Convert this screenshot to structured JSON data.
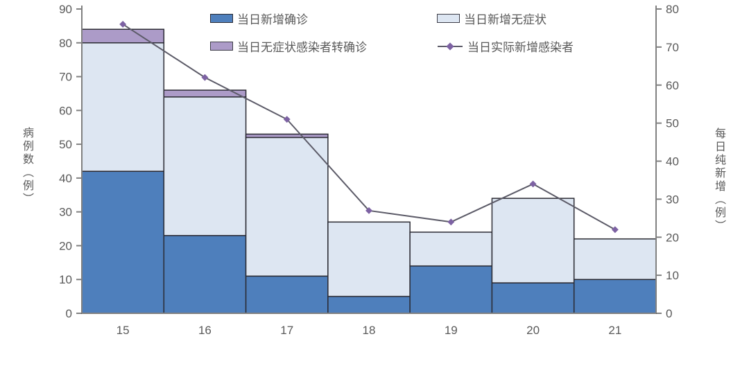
{
  "chart_data": {
    "type": "bar",
    "subtype": "stacked-bar-with-line",
    "categories": [
      "15",
      "16",
      "17",
      "18",
      "19",
      "20",
      "21"
    ],
    "series": [
      {
        "name": "当日新增确诊",
        "type": "bar",
        "axis": "left",
        "color": "#4e7fbc",
        "values": [
          42,
          23,
          11,
          5,
          14,
          9,
          10
        ]
      },
      {
        "name": "当日新增无症状",
        "type": "bar",
        "axis": "left",
        "color": "#dde6f2",
        "values": [
          38,
          41,
          41,
          22,
          10,
          25,
          12
        ]
      },
      {
        "name": "当日无症状感染者转确诊",
        "type": "bar",
        "axis": "left",
        "color": "#ac9bc8",
        "values": [
          4,
          2,
          1,
          0,
          0,
          0,
          0
        ]
      },
      {
        "name": "当日实际新增感染者",
        "type": "line",
        "axis": "right",
        "color": "#5c5b68",
        "marker_color": "#7d62a3",
        "values": [
          76,
          62,
          51,
          27,
          24,
          34,
          22
        ]
      }
    ],
    "stack_totals": [
      84,
      66,
      53,
      27,
      24,
      34,
      22
    ],
    "left_axis": {
      "label": "病例数（例）",
      "min": 0,
      "max": 90,
      "step": 10,
      "ticks": [
        0,
        10,
        20,
        30,
        40,
        50,
        60,
        70,
        80,
        90
      ]
    },
    "right_axis": {
      "label": "每日纯新增（例）",
      "min": 0,
      "max": 80,
      "step": 10,
      "ticks": [
        0,
        10,
        20,
        30,
        40,
        50,
        60,
        70,
        80
      ]
    },
    "grid": false,
    "legend_position": "top",
    "colors": {
      "axis_line": "#808080",
      "tick_text": "#595959",
      "bar_border": "#2b2b33",
      "line_series": "#5c5b68",
      "line_marker": "#7d62a3"
    }
  }
}
